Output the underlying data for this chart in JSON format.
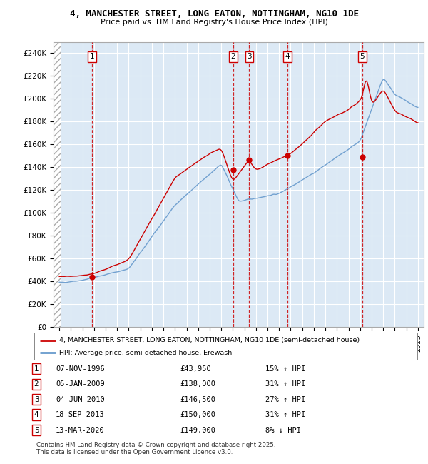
{
  "title1": "4, MANCHESTER STREET, LONG EATON, NOTTINGHAM, NG10 1DE",
  "title2": "Price paid vs. HM Land Registry's House Price Index (HPI)",
  "background_color": "#dce9f5",
  "legend_label_red": "4, MANCHESTER STREET, LONG EATON, NOTTINGHAM, NG10 1DE (semi-detached house)",
  "legend_label_blue": "HPI: Average price, semi-detached house, Erewash",
  "footer": "Contains HM Land Registry data © Crown copyright and database right 2025.\nThis data is licensed under the Open Government Licence v3.0.",
  "transactions": [
    {
      "num": 1,
      "date": "07-NOV-1996",
      "price": 43950,
      "pct": "15%",
      "dir": "↑",
      "x_year": 1996.85
    },
    {
      "num": 2,
      "date": "05-JAN-2009",
      "price": 138000,
      "pct": "31%",
      "dir": "↑",
      "x_year": 2009.02
    },
    {
      "num": 3,
      "date": "04-JUN-2010",
      "price": 146500,
      "pct": "27%",
      "dir": "↑",
      "x_year": 2010.42
    },
    {
      "num": 4,
      "date": "18-SEP-2013",
      "price": 150000,
      "pct": "31%",
      "dir": "↑",
      "x_year": 2013.71
    },
    {
      "num": 5,
      "date": "13-MAR-2020",
      "price": 149000,
      "pct": "8%",
      "dir": "↓",
      "x_year": 2020.19
    }
  ],
  "ylim": [
    0,
    250000
  ],
  "xlim": [
    1993.5,
    2025.5
  ],
  "yticks": [
    0,
    20000,
    40000,
    60000,
    80000,
    100000,
    120000,
    140000,
    160000,
    180000,
    200000,
    220000,
    240000
  ],
  "ytick_labels": [
    "£0",
    "£20K",
    "£40K",
    "£60K",
    "£80K",
    "£100K",
    "£120K",
    "£140K",
    "£160K",
    "£180K",
    "£200K",
    "£220K",
    "£240K"
  ],
  "xticks": [
    1994,
    1995,
    1996,
    1997,
    1998,
    1999,
    2000,
    2001,
    2002,
    2003,
    2004,
    2005,
    2006,
    2007,
    2008,
    2009,
    2010,
    2011,
    2012,
    2013,
    2014,
    2015,
    2016,
    2017,
    2018,
    2019,
    2020,
    2021,
    2022,
    2023,
    2024,
    2025
  ],
  "hpi_color": "#6699cc",
  "price_color": "#cc0000"
}
